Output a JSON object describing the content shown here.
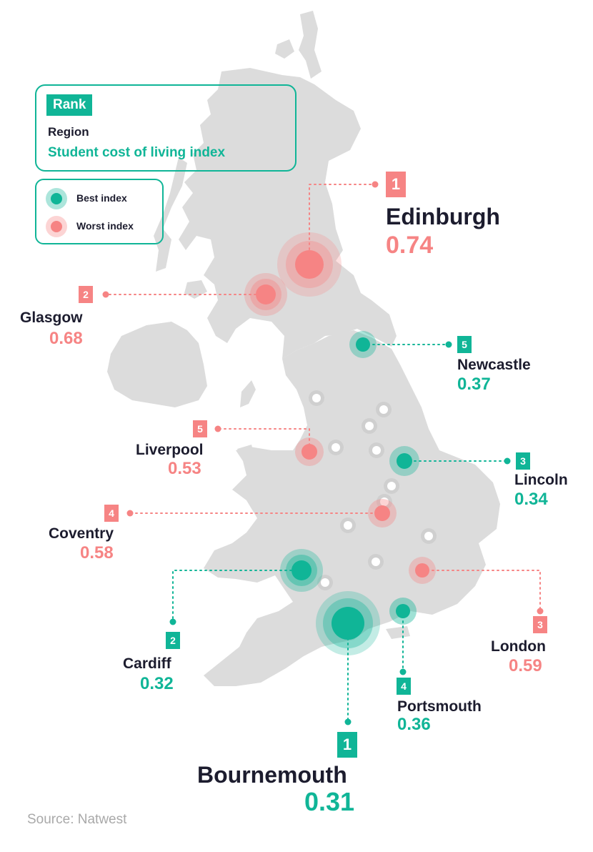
{
  "legend": {
    "rank_label": "Rank",
    "region_label": "Region",
    "index_label": "Student cost of living index",
    "best_label": "Best index",
    "worst_label": "Worst index"
  },
  "colors": {
    "best": "#10b597",
    "worst": "#f68484",
    "map": "#dcdcdc",
    "text": "#1c1c2e"
  },
  "cities": {
    "edinburgh": {
      "rank": "1",
      "name": "Edinburgh",
      "value": "0.74",
      "type": "worst"
    },
    "glasgow": {
      "rank": "2",
      "name": "Glasgow",
      "value": "0.68",
      "type": "worst"
    },
    "newcastle": {
      "rank": "5",
      "name": "Newcastle",
      "value": "0.37",
      "type": "best"
    },
    "liverpool": {
      "rank": "5",
      "name": "Liverpool",
      "value": "0.53",
      "type": "worst"
    },
    "lincoln": {
      "rank": "3",
      "name": "Lincoln",
      "value": "0.34",
      "type": "best"
    },
    "coventry": {
      "rank": "4",
      "name": "Coventry",
      "value": "0.58",
      "type": "worst"
    },
    "cardiff": {
      "rank": "2",
      "name": "Cardiff",
      "value": "0.32",
      "type": "best"
    },
    "london": {
      "rank": "3",
      "name": "London",
      "value": "0.59",
      "type": "worst"
    },
    "portsmouth": {
      "rank": "4",
      "name": "Portsmouth",
      "value": "0.36",
      "type": "best"
    },
    "bournemouth": {
      "rank": "1",
      "name": "Bournemouth",
      "value": "0.31",
      "type": "best"
    }
  },
  "source": "Source: Natwest"
}
